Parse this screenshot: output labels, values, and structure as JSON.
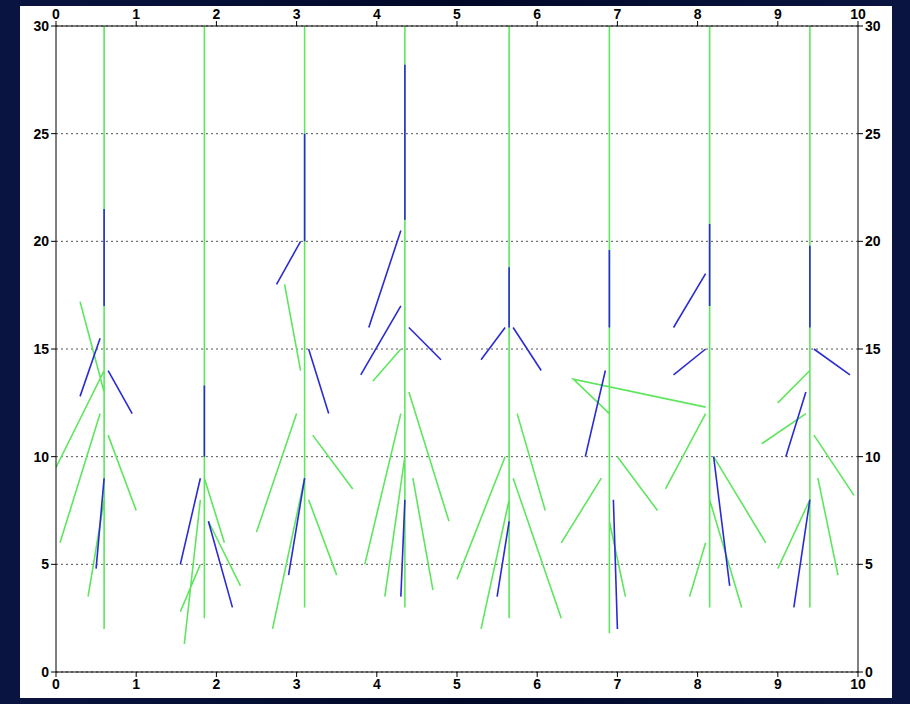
{
  "chart_data": {
    "type": "line",
    "xlim": [
      0,
      10
    ],
    "xticks": [
      0,
      1,
      2,
      3,
      4,
      5,
      6,
      7,
      8,
      9,
      10
    ],
    "ylim": [
      0,
      30
    ],
    "yticks": [
      0,
      5,
      10,
      15,
      20,
      25,
      30
    ],
    "grid": true,
    "series": [
      {
        "color": "#5ee65e",
        "x": [
          0.6,
          0.6,
          null,
          0.6,
          0.0,
          null,
          0.55,
          0.05,
          null,
          0.65,
          1.0,
          null,
          0.6,
          0.4,
          null,
          0.6,
          0.3,
          null,
          1.85,
          1.85,
          null,
          1.8,
          1.6,
          null,
          1.9,
          2.3,
          null,
          1.85,
          2.1,
          null,
          1.8,
          1.55,
          null,
          3.1,
          3.1,
          null,
          3.0,
          2.5,
          null,
          3.1,
          2.7,
          null,
          3.2,
          3.7,
          null,
          3.15,
          3.5,
          null,
          3.05,
          2.85,
          null,
          4.35,
          4.35,
          null,
          4.3,
          3.85,
          null,
          4.4,
          4.9,
          null,
          4.35,
          4.1,
          null,
          4.45,
          4.7,
          null,
          4.3,
          3.95,
          null,
          5.65,
          5.65,
          null,
          5.6,
          5.0,
          null,
          5.7,
          6.3,
          null,
          5.65,
          5.3,
          null,
          5.75,
          6.1,
          null,
          6.9,
          6.9,
          null,
          6.9,
          6.45,
          8.1,
          null,
          6.8,
          6.3,
          null,
          7.0,
          7.5,
          null,
          6.9,
          7.1,
          null,
          8.15,
          8.15,
          null,
          8.1,
          7.6,
          null,
          8.2,
          8.85,
          null,
          8.15,
          8.55,
          null,
          8.1,
          7.9,
          null,
          9.4,
          9.4,
          null,
          9.35,
          8.8,
          null,
          9.45,
          9.95,
          null,
          9.4,
          9.0,
          null,
          9.5,
          9.75,
          null,
          9.4,
          9.0
        ],
        "values": [
          30,
          2,
          null,
          14,
          9.5,
          null,
          12,
          6,
          null,
          11,
          7.5,
          null,
          8,
          3.5,
          null,
          13,
          17.2,
          null,
          30,
          2.5,
          null,
          8,
          1.3,
          null,
          7,
          4,
          null,
          9,
          6,
          null,
          5,
          2.8,
          null,
          30,
          3,
          null,
          12,
          6.5,
          null,
          9,
          2,
          null,
          11,
          8.5,
          null,
          8,
          4.5,
          null,
          14,
          18,
          null,
          30,
          3,
          null,
          12,
          5,
          null,
          13,
          7,
          null,
          10,
          3.5,
          null,
          9,
          3.8,
          null,
          15,
          13.5,
          null,
          30,
          2.5,
          null,
          10,
          4.3,
          null,
          9,
          2.5,
          null,
          8,
          2,
          null,
          12,
          7.5,
          null,
          30,
          1.8,
          null,
          12,
          13.6,
          12.3,
          null,
          9,
          6,
          null,
          10,
          7.5,
          null,
          7,
          3.5,
          null,
          30,
          3,
          null,
          12,
          8.5,
          null,
          10,
          6,
          null,
          8,
          3,
          null,
          6,
          3.5,
          null,
          30,
          3,
          null,
          12,
          10.6,
          null,
          11,
          8.2,
          null,
          8,
          4.8,
          null,
          9,
          4.5,
          null,
          14,
          12.5
        ]
      },
      {
        "color": "#2b2bd6",
        "x": [
          0.6,
          0.6,
          null,
          0.55,
          0.3,
          null,
          0.65,
          0.95,
          null,
          0.6,
          0.5,
          null,
          1.85,
          1.85,
          null,
          1.8,
          1.55,
          null,
          1.9,
          2.2,
          null,
          3.1,
          3.1,
          null,
          3.05,
          2.75,
          null,
          3.15,
          3.4,
          null,
          3.1,
          2.9,
          null,
          4.35,
          4.35,
          null,
          4.3,
          3.9,
          null,
          4.3,
          3.8,
          null,
          4.4,
          4.8,
          null,
          4.35,
          4.3,
          null,
          5.65,
          5.65,
          null,
          5.6,
          5.3,
          null,
          5.7,
          6.05,
          null,
          5.65,
          5.5,
          null,
          6.9,
          6.9,
          null,
          6.85,
          6.6,
          null,
          6.95,
          7.0,
          null,
          8.15,
          8.15,
          null,
          8.1,
          7.7,
          null,
          8.1,
          7.7,
          null,
          8.2,
          8.4,
          null,
          9.4,
          9.4,
          null,
          9.45,
          9.9,
          null,
          9.35,
          9.1,
          null,
          9.4,
          9.2
        ],
        "values": [
          21.5,
          17,
          null,
          15.5,
          12.8,
          null,
          14,
          12,
          null,
          9,
          4.8,
          null,
          13.3,
          10,
          null,
          9,
          5,
          null,
          7,
          3,
          null,
          25,
          20,
          null,
          20,
          18,
          null,
          15,
          12,
          null,
          9,
          4.5,
          null,
          28.2,
          21,
          null,
          20.5,
          16,
          null,
          17,
          13.8,
          null,
          16,
          14.5,
          null,
          8,
          3.5,
          null,
          18.8,
          16,
          null,
          16,
          14.5,
          null,
          16,
          14,
          null,
          7,
          3.5,
          null,
          19.6,
          16,
          null,
          14,
          10,
          null,
          8,
          2,
          null,
          20.8,
          17,
          null,
          18.5,
          16,
          null,
          15,
          13.8,
          null,
          10,
          4,
          null,
          19.8,
          16,
          null,
          15,
          13.8,
          null,
          13,
          10,
          null,
          8,
          3
        ]
      }
    ]
  }
}
